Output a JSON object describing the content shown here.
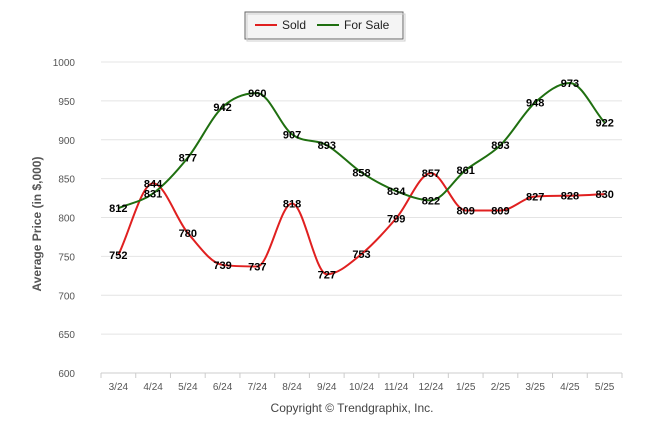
{
  "chart_data": {
    "type": "line",
    "categories": [
      "3/24",
      "4/24",
      "5/24",
      "6/24",
      "7/24",
      "8/24",
      "9/24",
      "10/24",
      "11/24",
      "12/24",
      "1/25",
      "2/25",
      "3/25",
      "4/25",
      "5/25"
    ],
    "series": [
      {
        "name": "Sold",
        "color": "#e02020",
        "values": [
          752,
          844,
          780,
          739,
          737,
          818,
          727,
          753,
          799,
          857,
          809,
          809,
          827,
          828,
          830
        ]
      },
      {
        "name": "For Sale",
        "color": "#1f6f10",
        "values": [
          812,
          831,
          877,
          942,
          960,
          907,
          893,
          858,
          834,
          822,
          861,
          893,
          948,
          973,
          922
        ]
      }
    ],
    "ylabel": "Average Price (in $,000)",
    "xlabel": "",
    "ylim": [
      600,
      1000
    ],
    "yticks": [
      600,
      650,
      700,
      750,
      800,
      850,
      900,
      950,
      1000
    ],
    "grid": true,
    "legend_position": "top-center"
  },
  "legend": {
    "items": [
      "Sold",
      "For Sale"
    ]
  },
  "footer": {
    "copyright": "Copyright © Trendgraphix, Inc."
  }
}
